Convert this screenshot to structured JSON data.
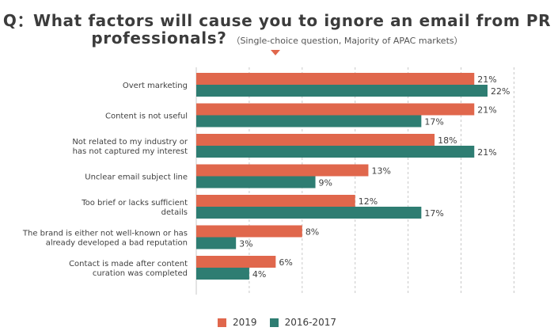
{
  "header": {
    "line1": "Q：What factors will cause you to ignore an email from PR",
    "line2": "professionals?",
    "subtitle": "（Single-choice question, Majority of APAC markets）"
  },
  "colors": {
    "series_2019": "#e0674c",
    "series_2016_2017": "#2e7d72",
    "pointer": "#e0674c",
    "grid": "#c8c8c8"
  },
  "chart_data": {
    "type": "bar",
    "orientation": "horizontal",
    "categories": [
      [
        "Overt marketing"
      ],
      [
        "Content is not useful"
      ],
      [
        "Not related to my industry or",
        "has not captured my interest"
      ],
      [
        "Unclear email subject line"
      ],
      [
        "Too brief or lacks sufficient",
        "details"
      ],
      [
        "The brand is either not well-known or has",
        "already developed a bad reputation"
      ],
      [
        "Contact is made after content",
        "curation was completed"
      ]
    ],
    "series": [
      {
        "name": "2019",
        "values": [
          21,
          21,
          18,
          13,
          12,
          8,
          6
        ]
      },
      {
        "name": "2016-2017",
        "values": [
          22,
          17,
          21,
          9,
          17,
          3,
          4
        ]
      }
    ],
    "value_format": "{v}%",
    "xlim": [
      0,
      24
    ],
    "grid": "vertical dashed",
    "legend_position": "bottom-center"
  }
}
